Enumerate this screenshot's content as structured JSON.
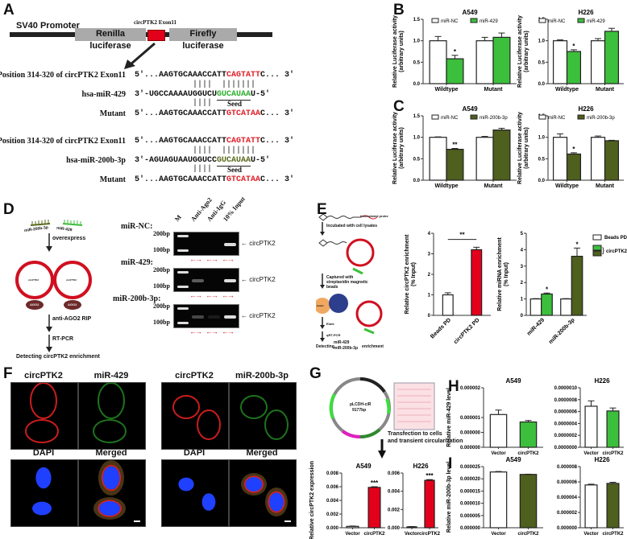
{
  "panels": {
    "a": "A",
    "b": "B",
    "c": "C",
    "d": "D",
    "e": "E",
    "f": "F",
    "g": "G",
    "h": "H",
    "i": "I"
  },
  "construct": {
    "promoter": "SV40 Promoter",
    "renilla": "Renilla luciferase",
    "insert_label": "circPTK2  Exon11",
    "firefly": "Firefly luciferase"
  },
  "sequences": [
    {
      "site_label": "Position 314-320 of  circPTK2  Exon11",
      "site_pre": "5'...AAGTGCAAACCATT",
      "site_seed": "CAGTATT",
      "site_post": "C... 3'",
      "pairing": "            ||||  |||||||",
      "mir_label": "hsa-miR-429",
      "mir_pre": "3'-UGCCAAAAUGGUCU",
      "mir_seed": "GUCAUAA",
      "mir_post": "U-5'",
      "pairing2": "            ||||",
      "seed_label": "Seed",
      "mut_label": "Mutant",
      "mut_pre": "5'...AAGTGCAAACCATT",
      "mut_seed": "GTCATAA",
      "mut_post": "C... 3'"
    },
    {
      "site_label": "Position 314-320 of  circPTK2  Exon11",
      "site_pre": "5'...AAGTGCAAACCATT",
      "site_seed": "CAGTATT",
      "site_post": "C... 3'",
      "pairing": "            ||||  |||||||",
      "mir_label": "hsa-miR-200b-3p",
      "mir_pre": "3'-AGUAGUAAUGGUCC",
      "mir_seed": "GUCAUAA",
      "mir_post": "U-5'",
      "pairing2": "            ||||",
      "seed_label": "Seed",
      "mut_label": "Mutant",
      "mut_pre": "5'...AAGTGCAAACCATT",
      "mut_seed": "GTCATAA",
      "mut_post": "C... 3'"
    }
  ],
  "rip_diagram": {
    "mir1": "miR-200b-3p",
    "mir2": "miR-429",
    "step1": "overexpress",
    "circ_label": "circPTK2",
    "ago": "AGO2",
    "step2": "anti-AGO2 RIP",
    "step3": "RT-PCR",
    "result": "Detecting circPTK2 enrichment"
  },
  "gel": {
    "lanes": [
      "M",
      "Anti-Ago2",
      "Anti-IgG",
      "10% Input"
    ],
    "rows": [
      {
        "label": "miR-NC:",
        "bp_high": "200bp",
        "bp_low": "100bp",
        "target": "circPTK2",
        "bands": [
          0,
          0,
          0,
          1
        ]
      },
      {
        "label": "miR-429:",
        "bp_high": "200bp",
        "bp_low": "100bp",
        "target": "circPTK2",
        "bands": [
          0,
          0.4,
          0,
          1
        ]
      },
      {
        "label": "miR-200b-3p:",
        "bp_high": "200bp",
        "bp_low": "100bp",
        "target": "circPTK2",
        "bands": [
          0,
          0.3,
          0.1,
          1
        ]
      }
    ]
  },
  "pulldown_diagram": {
    "probe": "biotinylated probe",
    "step1": "Incubated with cell lysates",
    "step2": "Captured with streptavidin magnetic beads",
    "beads": "beads",
    "step3": "Elute",
    "step4": "qRT-PCR",
    "result_pre": "Detecting",
    "result_mir1": "miR-429",
    "result_mir2": "miR-200b-3p",
    "result_post": "enrichment"
  },
  "fish": {
    "left": {
      "tl": "circPTK2",
      "tr": "miR-429",
      "bl": "DAPI",
      "br": "Merged"
    },
    "right": {
      "tl": "circPTK2",
      "tr": "miR-200b-3p",
      "bl": "DAPI",
      "br": "Merged"
    }
  },
  "plasmid": {
    "name": "pLCDH-ciR",
    "size": "9177bp",
    "step": "Transfection to cells",
    "step2": "and transient circularization"
  },
  "colors": {
    "green": "#3cbf3c",
    "olive": "#4e5f1e",
    "red": "#e3001b",
    "white": "#ffffff"
  },
  "chart_data": [
    {
      "id": "b1",
      "type": "bar",
      "title": "A549",
      "ylabel": "Relative Luciferase activity\n(arbitrary units)",
      "ylim": [
        0,
        1.5
      ],
      "ticks": [
        0,
        0.5,
        1,
        1.5
      ],
      "tick_labels": [
        "0.0",
        "0.5",
        "1.0",
        "1.5"
      ],
      "categories": [
        "Wildtype",
        "Mutant"
      ],
      "series": [
        {
          "name": "miR-NC",
          "values": [
            1.0,
            1.0
          ],
          "errors": [
            0.1,
            0.08
          ],
          "colors": [
            "#ffffff",
            "#ffffff"
          ]
        },
        {
          "name": "miR-429",
          "values": [
            0.58,
            1.08
          ],
          "errors": [
            0.08,
            0.1
          ],
          "colors": [
            "#3cbf3c",
            "#3cbf3c"
          ]
        }
      ],
      "sig": [
        {
          "group": 0,
          "series": 1,
          "text": "*"
        }
      ],
      "legend": [
        {
          "name": "miR-NC",
          "color": "#ffffff"
        },
        {
          "name": "miR-429",
          "color": "#3cbf3c"
        }
      ]
    },
    {
      "id": "b2",
      "type": "bar",
      "title": "H226",
      "ylabel": "Relative Luciferase activity\n(arbitrary units)",
      "ylim": [
        0,
        1.5
      ],
      "ticks": [
        0,
        0.5,
        1,
        1.5
      ],
      "tick_labels": [
        "0.0",
        "0.5",
        "1.0",
        "1.5"
      ],
      "categories": [
        "Wildtype",
        "Mutant"
      ],
      "series": [
        {
          "name": "miR-NC",
          "values": [
            1.0,
            1.0
          ],
          "errors": [
            0.02,
            0.05
          ],
          "colors": [
            "#ffffff",
            "#ffffff"
          ]
        },
        {
          "name": "miR-429",
          "values": [
            0.75,
            1.22
          ],
          "errors": [
            0.04,
            0.07
          ],
          "colors": [
            "#3cbf3c",
            "#3cbf3c"
          ]
        }
      ],
      "sig": [
        {
          "group": 0,
          "series": 1,
          "text": "*"
        }
      ],
      "legend": [
        {
          "name": "miR-NC",
          "color": "#ffffff"
        },
        {
          "name": "miR-429",
          "color": "#3cbf3c"
        }
      ]
    },
    {
      "id": "c1",
      "type": "bar",
      "title": "A549",
      "ylabel": "Relative Luciferase activity\n(arbitrary units)",
      "ylim": [
        0,
        1.5
      ],
      "ticks": [
        0,
        0.5,
        1,
        1.5
      ],
      "tick_labels": [
        "0.0",
        "0.5",
        "1.0",
        "1.5"
      ],
      "categories": [
        "Wildtype",
        "Mutant"
      ],
      "series": [
        {
          "name": "miR-NC",
          "values": [
            1.0,
            1.0
          ],
          "errors": [
            0.01,
            0.02
          ],
          "colors": [
            "#ffffff",
            "#ffffff"
          ]
        },
        {
          "name": "miR-200b-3p",
          "values": [
            0.72,
            1.17
          ],
          "errors": [
            0.02,
            0.04
          ],
          "colors": [
            "#4e5f1e",
            "#4e5f1e"
          ]
        }
      ],
      "sig": [
        {
          "group": 0,
          "series": 1,
          "text": "**"
        }
      ],
      "legend": [
        {
          "name": "miR-NC",
          "color": "#ffffff"
        },
        {
          "name": "miR-200b-3p",
          "color": "#4e5f1e"
        }
      ]
    },
    {
      "id": "c2",
      "type": "bar",
      "title": "H226",
      "ylabel": "Relative Luciferase activity\n(arbitrary units)",
      "ylim": [
        0,
        1.5
      ],
      "ticks": [
        0,
        0.5,
        1,
        1.5
      ],
      "tick_labels": [
        "0.0",
        "0.5",
        "1.0",
        "1.5"
      ],
      "categories": [
        "Wildtype",
        "Mutant"
      ],
      "series": [
        {
          "name": "miR-NC",
          "values": [
            1.0,
            1.0
          ],
          "errors": [
            0.08,
            0.03
          ],
          "colors": [
            "#ffffff",
            "#ffffff"
          ]
        },
        {
          "name": "miR-200b-3p",
          "values": [
            0.61,
            0.92
          ],
          "errors": [
            0.03,
            0.01
          ],
          "colors": [
            "#4e5f1e",
            "#4e5f1e"
          ]
        }
      ],
      "sig": [
        {
          "group": 0,
          "series": 1,
          "text": "*"
        }
      ],
      "legend": [
        {
          "name": "miR-NC",
          "color": "#ffffff"
        },
        {
          "name": "miR-200b-3p",
          "color": "#4e5f1e"
        }
      ]
    },
    {
      "id": "e1",
      "type": "bar",
      "title": "",
      "ylabel": "Relative circPTK2 enrichment\n(% Input)",
      "ylim": [
        0,
        4
      ],
      "ticks": [
        0,
        1,
        2,
        3,
        4
      ],
      "tick_labels": [
        "0",
        "1",
        "2",
        "3",
        "4"
      ],
      "categories": [
        "Beads PD",
        "circPTK2 PD"
      ],
      "rotate_x": true,
      "series": [
        {
          "name": "enrichment",
          "values": [
            1.0,
            3.2
          ],
          "errors": [
            0.1,
            0.12
          ],
          "colors": [
            "#ffffff",
            "#e3001b"
          ]
        }
      ],
      "bracket": {
        "text": "**"
      },
      "legend": []
    },
    {
      "id": "e2",
      "type": "bar",
      "title": "",
      "ylabel": "Relative miRNA enrichment\n(% Input)",
      "ylim": [
        0,
        5
      ],
      "ticks": [
        0,
        1,
        2,
        3,
        4,
        5
      ],
      "tick_labels": [
        "0",
        "1",
        "2",
        "3",
        "4",
        "5"
      ],
      "categories": [
        "miR-429",
        "miR-200b-3p"
      ],
      "rotate_x": true,
      "series": [
        {
          "name": "Beads PD",
          "values": [
            1.0,
            1.0
          ],
          "errors": [
            0.02,
            0.02
          ],
          "colors": [
            "#ffffff",
            "#ffffff"
          ]
        },
        {
          "name": "circPTK2 PD",
          "values": [
            1.3,
            3.6
          ],
          "errors": [
            0.06,
            0.5
          ],
          "colors": [
            "#3cbf3c",
            "#4e5f1e"
          ]
        }
      ],
      "sig": [
        {
          "group": 0,
          "series": 1,
          "text": "*"
        },
        {
          "group": 1,
          "series": 1,
          "text": "*"
        }
      ],
      "legend_right": [
        {
          "name": "Beads PD",
          "colors": [
            "#ffffff"
          ]
        },
        {
          "name": "circPTK2 PD",
          "colors": [
            "#3cbf3c",
            "#4e5f1e"
          ]
        }
      ]
    },
    {
      "id": "g1",
      "type": "bar",
      "title": "A549",
      "ylabel": "Relative circPTK2 expression",
      "ylim": [
        0,
        0.008
      ],
      "ticks": [
        0,
        0.002,
        0.004,
        0.006,
        0.008
      ],
      "tick_labels": [
        "0.000",
        "0.002",
        "0.004",
        "0.006",
        "0.008"
      ],
      "categories": [
        "Vector",
        "circPTK2"
      ],
      "flat": true,
      "series": [
        {
          "name": "expression",
          "values": [
            0.0002,
            0.0059
          ],
          "errors": [
            5e-05,
            0.0001
          ],
          "colors": [
            "#ffffff",
            "#e3001b"
          ]
        }
      ],
      "sig_flat": [
        {
          "index": 1,
          "text": "***"
        }
      ],
      "legend": []
    },
    {
      "id": "g2",
      "type": "bar",
      "title": "H226",
      "ylabel": "",
      "ylim": [
        0,
        0.006
      ],
      "ticks": [
        0,
        0.002,
        0.004,
        0.006
      ],
      "tick_labels": [
        "0.000",
        "0.002",
        "0.004",
        "0.006"
      ],
      "categories": [
        "Vector",
        "circPTK2"
      ],
      "flat": true,
      "series": [
        {
          "name": "expression",
          "values": [
            0.0001,
            0.0052
          ],
          "errors": [
            3e-05,
            8e-05
          ],
          "colors": [
            "#ffffff",
            "#e3001b"
          ]
        }
      ],
      "sig_flat": [
        {
          "index": 1,
          "text": "***"
        }
      ],
      "legend": []
    },
    {
      "id": "h1",
      "type": "bar",
      "title": "A549",
      "ylabel": "Relative miR-429 level",
      "ylim": [
        0,
        2e-06
      ],
      "ticks": [
        0,
        5e-07,
        1e-06,
        2e-06
      ],
      "tick_labels": [
        "0.000000",
        "0.000000",
        "0.000001",
        "0.000002"
      ],
      "categories": [
        "Vector",
        "circPTK2"
      ],
      "flat": true,
      "series": [
        {
          "name": "level",
          "values": [
            1.1e-06,
            8.5e-07
          ],
          "errors": [
            1.5e-07,
            5e-08
          ],
          "colors": [
            "#ffffff",
            "#3cbf3c"
          ]
        }
      ],
      "legend": []
    },
    {
      "id": "h2",
      "type": "bar",
      "title": "H226",
      "ylabel": "",
      "ylim": [
        0,
        1e-06
      ],
      "ticks": [
        0,
        2e-07,
        4e-07,
        6e-07,
        8e-07,
        1e-06
      ],
      "tick_labels": [
        "0.0000000",
        "0.0000002",
        "0.0000004",
        "0.0000006",
        "0.0000008",
        "0.0000010"
      ],
      "categories": [
        "Vector",
        "circPTK2"
      ],
      "flat": true,
      "series": [
        {
          "name": "level",
          "values": [
            6.9e-07,
            6.1e-07
          ],
          "errors": [
            9e-08,
            5e-08
          ],
          "colors": [
            "#ffffff",
            "#3cbf3c"
          ]
        }
      ],
      "legend": []
    },
    {
      "id": "i1",
      "type": "bar",
      "title": "A549",
      "ylabel": "Relative miR-200b-3p level",
      "ylim": [
        0,
        2.5e-05
      ],
      "ticks": [
        0,
        5e-06,
        1e-05,
        1.5e-05,
        2e-05,
        2.5e-05
      ],
      "tick_labels": [
        "0.000000",
        "0.000005",
        "0.000010",
        "0.000015",
        "0.000020",
        "0.000025"
      ],
      "categories": [
        "Vector",
        "circPTK2"
      ],
      "flat": true,
      "series": [
        {
          "name": "level",
          "values": [
            2.28e-05,
            2.18e-05
          ],
          "errors": [
            2e-07,
            1e-07
          ],
          "colors": [
            "#ffffff",
            "#4e5f1e"
          ]
        }
      ],
      "legend": []
    },
    {
      "id": "i2",
      "type": "bar",
      "title": "H226",
      "ylabel": "",
      "ylim": [
        0,
        8e-06
      ],
      "ticks": [
        0,
        2e-06,
        4e-06,
        6e-06,
        8e-06
      ],
      "tick_labels": [
        "0.000000",
        "0.000002",
        "0.000004",
        "0.000006",
        "0.000008"
      ],
      "categories": [
        "Vector",
        "circPTK2"
      ],
      "flat": true,
      "series": [
        {
          "name": "level",
          "values": [
            5.6e-06,
            5.8e-06
          ],
          "errors": [
            1e-07,
            1.5e-07
          ],
          "colors": [
            "#ffffff",
            "#4e5f1e"
          ]
        }
      ],
      "legend": []
    }
  ]
}
